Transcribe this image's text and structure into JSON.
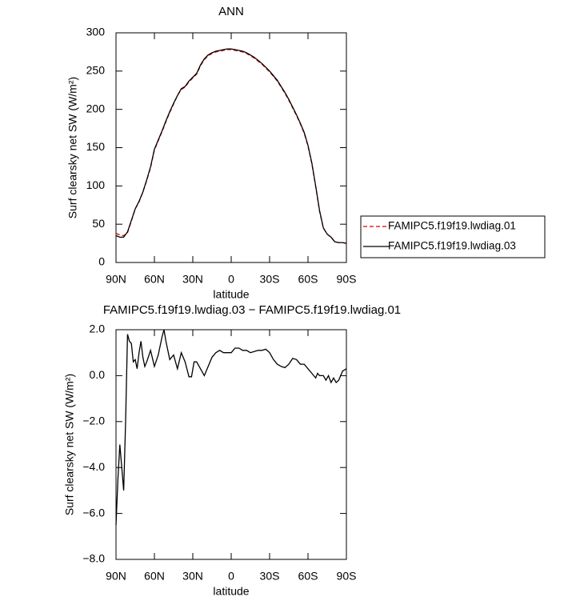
{
  "chart_data": [
    {
      "type": "line",
      "title": "ANN",
      "xlabel": "latitude",
      "ylabel": "Surf clearsky net SW (W/m²)",
      "xlim": [
        90,
        -90
      ],
      "xticks": [
        {
          "value": 90,
          "label": "90N"
        },
        {
          "value": 60,
          "label": "60N"
        },
        {
          "value": 30,
          "label": "30N"
        },
        {
          "value": 0,
          "label": "0"
        },
        {
          "value": -30,
          "label": "30S"
        },
        {
          "value": -60,
          "label": "60S"
        },
        {
          "value": -90,
          "label": "90S"
        }
      ],
      "ylim": [
        0,
        300
      ],
      "yticks": [
        0,
        50,
        100,
        150,
        200,
        250,
        300
      ],
      "legend": "right",
      "x": [
        90,
        87,
        84,
        81,
        78,
        75,
        72,
        69,
        66,
        63,
        60,
        57,
        54,
        51,
        48,
        45,
        42,
        39,
        36,
        33,
        30,
        27,
        24,
        21,
        18,
        15,
        12,
        9,
        6,
        3,
        0,
        -3,
        -6,
        -9,
        -12,
        -15,
        -18,
        -21,
        -24,
        -27,
        -30,
        -33,
        -36,
        -39,
        -42,
        -45,
        -48,
        -51,
        -54,
        -57,
        -60,
        -63,
        -66,
        -69,
        -72,
        -75,
        -78,
        -81,
        -84,
        -87,
        -90
      ],
      "series": [
        {
          "name": "FAMIPC5.f19f19.lwdiag.01",
          "color": "#e00000",
          "dash": true,
          "values": [
            38,
            36,
            35,
            39,
            54,
            70,
            79,
            92,
            107,
            124,
            147,
            159,
            171,
            184,
            196,
            207,
            218,
            226,
            229,
            236,
            241,
            246,
            257,
            265,
            270,
            273,
            275,
            276,
            277,
            278,
            278,
            277,
            276,
            275,
            273,
            270,
            267,
            263,
            259,
            254,
            249,
            243,
            237,
            229,
            221,
            212,
            202,
            192,
            181,
            169,
            152,
            129,
            99,
            67,
            45,
            37,
            33,
            27,
            26,
            26,
            25
          ]
        },
        {
          "name": "FAMIPC5.f19f19.lwdiag.03",
          "color": "#000000",
          "dash": false,
          "values": [
            35,
            33,
            33,
            40,
            55,
            70,
            80,
            92,
            108,
            125,
            148,
            160,
            172,
            185,
            197,
            208,
            218,
            227,
            230,
            237,
            242,
            247,
            258,
            266,
            271,
            274,
            276,
            277,
            278,
            279,
            279,
            278,
            277,
            276,
            274,
            271,
            268,
            264,
            260,
            255,
            250,
            244,
            238,
            230,
            222,
            213,
            203,
            193,
            182,
            170,
            153,
            130,
            100,
            68,
            45,
            37,
            33,
            27,
            26,
            26,
            25
          ]
        }
      ]
    },
    {
      "type": "line",
      "title": "FAMIPC5.f19f19.lwdiag.03 − FAMIPC5.f19f19.lwdiag.01",
      "xlabel": "latitude",
      "ylabel": "Surf clearsky net SW (W/m²)",
      "xlim": [
        90,
        -90
      ],
      "xticks": [
        {
          "value": 90,
          "label": "90N"
        },
        {
          "value": 60,
          "label": "60N"
        },
        {
          "value": 30,
          "label": "30N"
        },
        {
          "value": 0,
          "label": "0"
        },
        {
          "value": -30,
          "label": "30S"
        },
        {
          "value": -60,
          "label": "60S"
        },
        {
          "value": -90,
          "label": "90S"
        }
      ],
      "ylim": [
        -8,
        2
      ],
      "yticks": [
        {
          "value": -8,
          "label": "−8.0"
        },
        {
          "value": -6,
          "label": "−6.0"
        },
        {
          "value": -4,
          "label": "−4.0"
        },
        {
          "value": -2,
          "label": "−2.0"
        },
        {
          "value": 0,
          "label": "0.0"
        },
        {
          "value": 2,
          "label": "2.0"
        }
      ],
      "x": [
        90,
        88.5,
        87,
        85.5,
        84,
        82.5,
        81,
        79.5,
        78,
        76.5,
        75,
        73.5,
        72,
        70.5,
        69,
        67.5,
        66,
        63,
        60,
        57,
        54,
        52.5,
        51,
        48,
        45,
        42,
        39,
        36,
        33,
        31,
        29,
        27,
        24,
        21,
        18,
        15,
        12,
        9,
        6,
        3,
        0,
        -3,
        -6,
        -9,
        -12,
        -15,
        -18,
        -21,
        -24,
        -27,
        -30,
        -33,
        -36,
        -39,
        -42,
        -45,
        -48,
        -51,
        -54,
        -57,
        -60,
        -63,
        -66,
        -67.5,
        -69,
        -72,
        -74,
        -76,
        -78,
        -80,
        -82,
        -84,
        -87,
        -90
      ],
      "series": [
        {
          "color": "#000000",
          "dash": false,
          "values": [
            -6.5,
            -4.5,
            -3.0,
            -4.0,
            -5.0,
            -2.0,
            1.8,
            1.5,
            1.4,
            0.6,
            0.7,
            0.3,
            1.0,
            1.5,
            0.8,
            0.4,
            0.6,
            1.1,
            0.4,
            0.9,
            1.7,
            2.0,
            1.5,
            0.7,
            0.9,
            0.3,
            1.0,
            0.6,
            -0.05,
            -0.05,
            0.6,
            0.6,
            0.3,
            0.0,
            0.4,
            0.8,
            1.0,
            1.1,
            1.0,
            1.0,
            1.0,
            1.2,
            1.2,
            1.1,
            1.1,
            1.0,
            1.05,
            1.1,
            1.1,
            1.15,
            1.0,
            0.7,
            0.5,
            0.4,
            0.35,
            0.5,
            0.75,
            0.7,
            0.5,
            0.5,
            0.3,
            0.1,
            -0.1,
            0.1,
            0.0,
            0.0,
            -0.2,
            0.0,
            -0.3,
            -0.1,
            -0.3,
            -0.2,
            0.2,
            0.3
          ]
        }
      ]
    }
  ]
}
